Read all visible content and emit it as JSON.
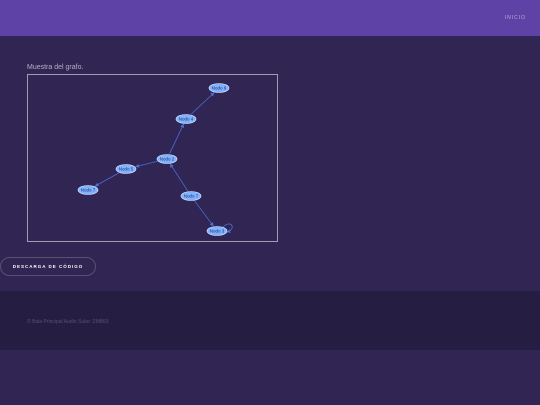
{
  "header": {
    "nav_link": "INICIO"
  },
  "main": {
    "caption": "Muestra del grafo.",
    "graph": {
      "nodes": [
        {
          "id": "n6",
          "label": "Nodo 6"
        },
        {
          "id": "n4",
          "label": "Nodo 4"
        },
        {
          "id": "n2",
          "label": "Nodo 2"
        },
        {
          "id": "n5",
          "label": "Nodo 5"
        },
        {
          "id": "n7a",
          "label": "Nodo 7"
        },
        {
          "id": "n7b",
          "label": "Nodo 7"
        },
        {
          "id": "n3",
          "label": "Nodo 3"
        }
      ],
      "edges": [
        {
          "from": "n4",
          "to": "n6"
        },
        {
          "from": "n2",
          "to": "n4"
        },
        {
          "from": "n2",
          "to": "n5"
        },
        {
          "from": "n5",
          "to": "n7a"
        },
        {
          "from": "n7b",
          "to": "n2"
        },
        {
          "from": "n7b",
          "to": "n3"
        }
      ],
      "self_loops": [
        "n3"
      ],
      "colors": {
        "node_fill": "#7fb3ff",
        "node_stroke": "#dfe9ff",
        "edge": "#4a6fd6",
        "label": "#1f2f6b"
      }
    },
    "download_label": "DESCARGA DE CÓDIGO"
  },
  "footer": {
    "copyright": "© Bala Principal Audio Sube: ZMB63"
  }
}
